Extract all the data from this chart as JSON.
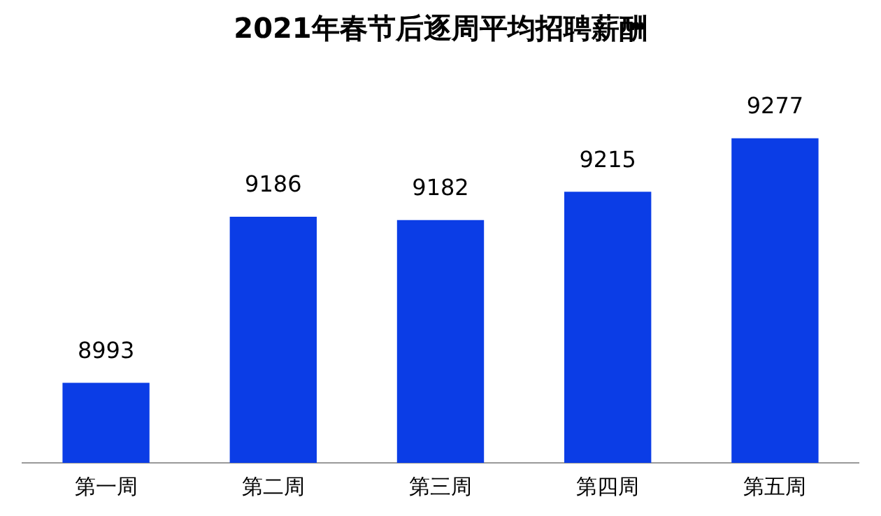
{
  "chart_data": {
    "type": "bar",
    "title": "2021年春节后逐周平均招聘薪酬",
    "categories": [
      "第一周",
      "第二周",
      "第三周",
      "第四周",
      "第五周"
    ],
    "values": [
      8993,
      9186,
      9182,
      9215,
      9277
    ],
    "color": "#0b3de6",
    "tick_labels": "x",
    "data_labels": true,
    "grid": false,
    "legend": false
  }
}
